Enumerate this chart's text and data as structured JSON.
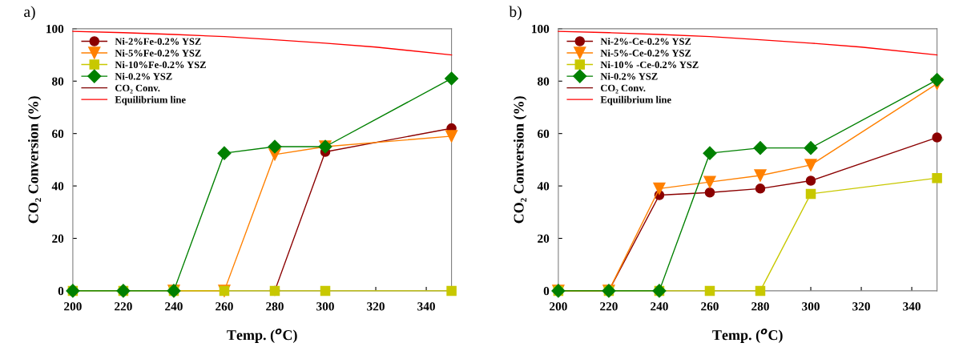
{
  "chart_data": [
    {
      "type": "line",
      "title": "a)",
      "xlabel": "Temp. ($^{o}$C)",
      "ylabel": "CO₂ Conversion (%)",
      "x": [
        200,
        220,
        240,
        260,
        280,
        300,
        350
      ],
      "xlim": [
        200,
        350
      ],
      "xticks": [
        200,
        220,
        240,
        260,
        280,
        300,
        320,
        340
      ],
      "ylim": [
        0,
        100
      ],
      "yticks": [
        0,
        20,
        40,
        60,
        80,
        100
      ],
      "grid": false,
      "legend": "top left",
      "series": [
        {
          "name": "Ni-2%Fe-0.2% YSZ",
          "color": "#8b0000",
          "marker": "circle",
          "values": [
            null,
            null,
            null,
            null,
            0,
            53,
            62
          ]
        },
        {
          "name": "Ni-5%Fe-0.2% YSZ",
          "color": "#ff8000",
          "marker": "triangle",
          "values": [
            null,
            null,
            0,
            0,
            52,
            55,
            59
          ]
        },
        {
          "name": "Ni-10%Fe-0.2% YSZ",
          "color": "#c8c800",
          "marker": "square",
          "values": [
            0,
            0,
            0,
            0,
            0,
            0,
            0
          ]
        },
        {
          "name": "Ni-0.2% YSZ",
          "color": "#008000",
          "marker": "diamond",
          "values": [
            0,
            0,
            0,
            52.5,
            55,
            55,
            81
          ]
        },
        {
          "name": "CO₂ Conv.",
          "color": "#800000",
          "marker": "none",
          "values": [
            null,
            null,
            null,
            null,
            null,
            null,
            null
          ]
        },
        {
          "name": "Equilibrium line",
          "color": "#ff0000",
          "marker": "none",
          "x": [
            200,
            220,
            240,
            260,
            280,
            300,
            320,
            350
          ],
          "values": [
            99,
            98.5,
            97.8,
            97,
            95.8,
            94.5,
            93,
            90
          ]
        }
      ]
    },
    {
      "type": "line",
      "title": "b)",
      "xlabel": "Temp. ($^{o}$C)",
      "ylabel": "CO₂ Conversion (%)",
      "x": [
        200,
        220,
        240,
        260,
        280,
        300,
        350
      ],
      "xlim": [
        200,
        350
      ],
      "xticks": [
        200,
        220,
        240,
        260,
        280,
        300,
        320,
        340
      ],
      "ylim": [
        0,
        100
      ],
      "yticks": [
        0,
        20,
        40,
        60,
        80,
        100
      ],
      "grid": false,
      "legend": "top left",
      "series": [
        {
          "name": "Ni-2%-Ce-0.2% YSZ",
          "color": "#8b0000",
          "marker": "circle",
          "values": [
            0,
            0,
            36.5,
            37.5,
            39,
            42,
            58.5
          ]
        },
        {
          "name": "Ni-5%-Ce-0.2% YSZ",
          "color": "#ff8000",
          "marker": "triangle",
          "values": [
            0,
            0,
            39,
            41.5,
            44,
            48,
            79
          ]
        },
        {
          "name": "Ni-10% -Ce-0.2% YSZ",
          "color": "#c8c800",
          "marker": "square",
          "values": [
            0,
            0,
            0,
            0,
            0,
            37,
            43
          ]
        },
        {
          "name": "Ni-0.2% YSZ",
          "color": "#008000",
          "marker": "diamond",
          "values": [
            0,
            0,
            0,
            52.5,
            54.5,
            54.5,
            80.5
          ]
        },
        {
          "name": "CO₂ Conv.",
          "color": "#800000",
          "marker": "none",
          "values": [
            null,
            null,
            null,
            null,
            null,
            null,
            null
          ]
        },
        {
          "name": "Equilibrium line",
          "color": "#ff0000",
          "marker": "none",
          "x": [
            200,
            220,
            240,
            260,
            280,
            300,
            320,
            350
          ],
          "values": [
            99,
            98.5,
            97.8,
            97,
            95.8,
            94.5,
            93,
            90
          ]
        }
      ]
    }
  ]
}
